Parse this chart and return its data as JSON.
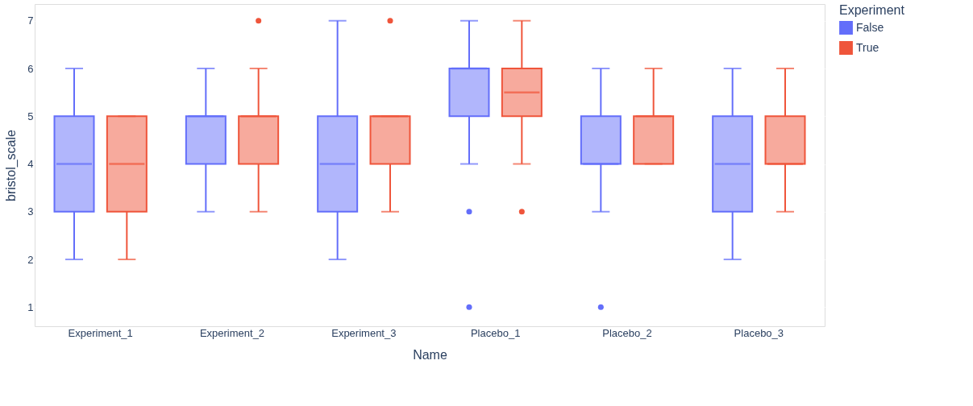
{
  "chart_data": {
    "type": "box",
    "xlabel": "Name",
    "ylabel": "bristol_scale",
    "legend_title": "Experiment",
    "categories": [
      "Experiment_1",
      "Experiment_2",
      "Experiment_3",
      "Placebo_1",
      "Placebo_2",
      "Placebo_3"
    ],
    "ylim": [
      0.6,
      7.35
    ],
    "yticks": [
      1,
      2,
      3,
      4,
      5,
      6,
      7
    ],
    "grid": "y",
    "legend": "top right",
    "series": [
      {
        "name": "False",
        "color": "#636efa",
        "boxes": [
          {
            "low": 2,
            "q1": 3,
            "median": 4,
            "q3": 5,
            "high": 6
          },
          {
            "low": 3,
            "q1": 4,
            "median": 5,
            "q3": 5,
            "high": 6
          },
          {
            "low": 2,
            "q1": 3,
            "median": 4,
            "q3": 5,
            "high": 7
          },
          {
            "low": 4,
            "q1": 5,
            "median": 6,
            "q3": 6,
            "high": 7,
            "outliers": [
              3,
              1
            ]
          },
          {
            "low": 3,
            "q1": 4,
            "median": 4,
            "q3": 5,
            "high": 6,
            "outliers": [
              1
            ]
          },
          {
            "low": 2,
            "q1": 3,
            "median": 4,
            "q3": 5,
            "high": 6
          }
        ]
      },
      {
        "name": "True",
        "color": "#ef553b",
        "boxes": [
          {
            "low": 2,
            "q1": 3,
            "median": 4,
            "q3": 5,
            "high": 5
          },
          {
            "low": 3,
            "q1": 4,
            "median": 5,
            "q3": 5,
            "high": 6,
            "outliers": [
              7
            ]
          },
          {
            "low": 3,
            "q1": 4,
            "median": 5,
            "q3": 5,
            "high": 5,
            "outliers": [
              7
            ]
          },
          {
            "low": 4,
            "q1": 5,
            "median": 5.5,
            "q3": 6,
            "high": 7,
            "outliers": [
              3
            ]
          },
          {
            "low": 4,
            "q1": 4,
            "median": 5,
            "q3": 5,
            "high": 6
          },
          {
            "low": 3,
            "q1": 4,
            "median": 4,
            "q3": 5,
            "high": 6
          }
        ]
      }
    ]
  }
}
